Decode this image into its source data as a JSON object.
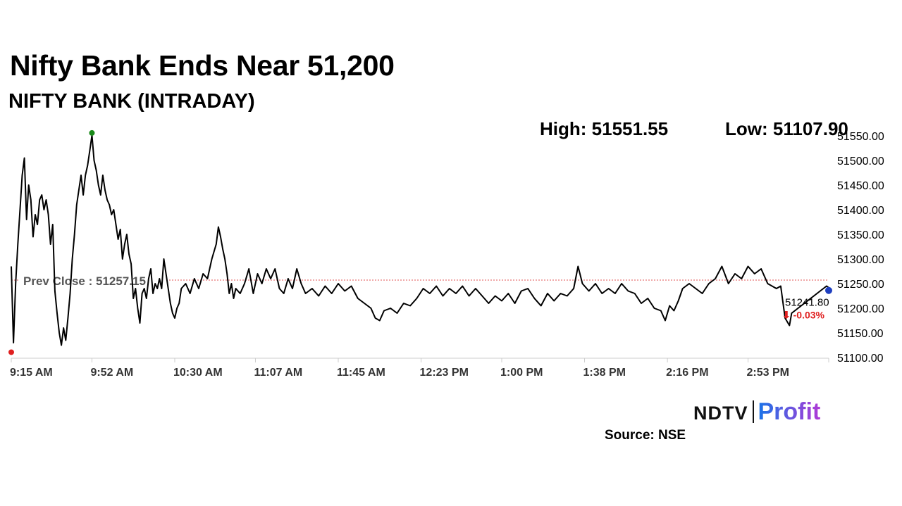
{
  "header": {
    "title": "Nifty Bank Ends Near 51,200",
    "subtitle": "NIFTY BANK (INTRADAY)",
    "high_label": "High: 51551.55",
    "low_label": "Low: 51107.90"
  },
  "footer": {
    "logo_ndtv": "NDTV",
    "logo_profit": "Profit",
    "source": "Source: NSE"
  },
  "chart_data": {
    "type": "line",
    "title": "NIFTY BANK (INTRADAY)",
    "xlabel": "",
    "ylabel": "",
    "x_ticks": [
      "9:15 AM",
      "9:52 AM",
      "10:30 AM",
      "11:07 AM",
      "11:45 AM",
      "12:23 PM",
      "1:00 PM",
      "1:38 PM",
      "2:16 PM",
      "2:53 PM"
    ],
    "y_ticks": [
      "51100.00",
      "51150.00",
      "51200.00",
      "51250.00",
      "51300.00",
      "51350.00",
      "51400.00",
      "51450.00",
      "51500.00",
      "51550.00"
    ],
    "ylim": [
      51100,
      51550
    ],
    "xlim": [
      "9:15 AM",
      "3:30 PM"
    ],
    "grid": false,
    "prev_close": 51257.15,
    "prev_close_label": "Prev Close : 51257.15",
    "high": 51551.55,
    "low": 51107.9,
    "last_value": "51241.80",
    "change_label": "⬇ -0.03%",
    "line_color": "#000000",
    "prev_close_color": "#e05050",
    "high_marker_color": "#1a8a1a",
    "low_marker_color": "#e02020",
    "last_marker_color": "#1f3fbf",
    "change_color": "#e02020",
    "points": [
      [
        "9:15 AM",
        51285
      ],
      [
        "9:16 AM",
        51130
      ],
      [
        "9:17 AM",
        51250
      ],
      [
        "9:18 AM",
        51330
      ],
      [
        "9:20 AM",
        51470
      ],
      [
        "9:21 AM",
        51505
      ],
      [
        "9:22 AM",
        51380
      ],
      [
        "9:23 AM",
        51450
      ],
      [
        "9:24 AM",
        51420
      ],
      [
        "9:25 AM",
        51345
      ],
      [
        "9:26 AM",
        51390
      ],
      [
        "9:27 AM",
        51370
      ],
      [
        "9:28 AM",
        51420
      ],
      [
        "9:29 AM",
        51430
      ],
      [
        "9:30 AM",
        51400
      ],
      [
        "9:31 AM",
        51420
      ],
      [
        "9:32 AM",
        51390
      ],
      [
        "9:33 AM",
        51330
      ],
      [
        "9:34 AM",
        51370
      ],
      [
        "9:35 AM",
        51235
      ],
      [
        "9:36 AM",
        51190
      ],
      [
        "9:37 AM",
        51150
      ],
      [
        "9:38 AM",
        51125
      ],
      [
        "9:39 AM",
        51160
      ],
      [
        "9:40 AM",
        51135
      ],
      [
        "9:41 AM",
        51180
      ],
      [
        "9:42 AM",
        51230
      ],
      [
        "9:43 AM",
        51300
      ],
      [
        "9:44 AM",
        51350
      ],
      [
        "9:45 AM",
        51410
      ],
      [
        "9:46 AM",
        51440
      ],
      [
        "9:47 AM",
        51470
      ],
      [
        "9:48 AM",
        51430
      ],
      [
        "9:49 AM",
        51470
      ],
      [
        "9:50 AM",
        51490
      ],
      [
        "9:51 AM",
        51520
      ],
      [
        "9:52 AM",
        51551
      ],
      [
        "9:53 AM",
        51500
      ],
      [
        "9:54 AM",
        51480
      ],
      [
        "9:55 AM",
        51450
      ],
      [
        "9:56 AM",
        51430
      ],
      [
        "9:57 AM",
        51470
      ],
      [
        "9:58 AM",
        51440
      ],
      [
        "9:59 AM",
        51420
      ],
      [
        "10:00 AM",
        51410
      ],
      [
        "10:01 AM",
        51390
      ],
      [
        "10:02 AM",
        51400
      ],
      [
        "10:03 AM",
        51370
      ],
      [
        "10:04 AM",
        51340
      ],
      [
        "10:05 AM",
        51360
      ],
      [
        "10:06 AM",
        51300
      ],
      [
        "10:07 AM",
        51330
      ],
      [
        "10:08 AM",
        51350
      ],
      [
        "10:09 AM",
        51310
      ],
      [
        "10:10 AM",
        51290
      ],
      [
        "10:11 AM",
        51220
      ],
      [
        "10:12 AM",
        51240
      ],
      [
        "10:13 AM",
        51200
      ],
      [
        "10:14 AM",
        51170
      ],
      [
        "10:15 AM",
        51230
      ],
      [
        "10:16 AM",
        51240
      ],
      [
        "10:17 AM",
        51220
      ],
      [
        "10:18 AM",
        51260
      ],
      [
        "10:19 AM",
        51280
      ],
      [
        "10:20 AM",
        51230
      ],
      [
        "10:21 AM",
        51250
      ],
      [
        "10:22 AM",
        51240
      ],
      [
        "10:23 AM",
        51260
      ],
      [
        "10:24 AM",
        51240
      ],
      [
        "10:25 AM",
        51300
      ],
      [
        "10:26 AM",
        51270
      ],
      [
        "10:27 AM",
        51240
      ],
      [
        "10:28 AM",
        51210
      ],
      [
        "10:29 AM",
        51190
      ],
      [
        "10:30 AM",
        51180
      ],
      [
        "10:31 AM",
        51200
      ],
      [
        "10:32 AM",
        51210
      ],
      [
        "10:33 AM",
        51240
      ],
      [
        "10:35 AM",
        51250
      ],
      [
        "10:37 AM",
        51230
      ],
      [
        "10:39 AM",
        51260
      ],
      [
        "10:41 AM",
        51240
      ],
      [
        "10:43 AM",
        51270
      ],
      [
        "10:45 AM",
        51260
      ],
      [
        "10:47 AM",
        51300
      ],
      [
        "10:49 AM",
        51330
      ],
      [
        "10:50 AM",
        51365
      ],
      [
        "10:51 AM",
        51345
      ],
      [
        "10:52 AM",
        51320
      ],
      [
        "10:53 AM",
        51300
      ],
      [
        "10:54 AM",
        51270
      ],
      [
        "10:55 AM",
        51230
      ],
      [
        "10:56 AM",
        51250
      ],
      [
        "10:57 AM",
        51220
      ],
      [
        "10:58 AM",
        51240
      ],
      [
        "11:00 AM",
        51230
      ],
      [
        "11:02 AM",
        51250
      ],
      [
        "11:04 AM",
        51280
      ],
      [
        "11:06 AM",
        51230
      ],
      [
        "11:08 AM",
        51270
      ],
      [
        "11:10 AM",
        51250
      ],
      [
        "11:12 AM",
        51280
      ],
      [
        "11:14 AM",
        51260
      ],
      [
        "11:16 AM",
        51280
      ],
      [
        "11:18 AM",
        51240
      ],
      [
        "11:20 AM",
        51230
      ],
      [
        "11:22 AM",
        51260
      ],
      [
        "11:24 AM",
        51240
      ],
      [
        "11:26 AM",
        51280
      ],
      [
        "11:28 AM",
        51250
      ],
      [
        "11:30 AM",
        51230
      ],
      [
        "11:33 AM",
        51240
      ],
      [
        "11:36 AM",
        51225
      ],
      [
        "11:39 AM",
        51245
      ],
      [
        "11:42 AM",
        51230
      ],
      [
        "11:45 AM",
        51250
      ],
      [
        "11:48 AM",
        51235
      ],
      [
        "11:51 AM",
        51245
      ],
      [
        "11:54 AM",
        51220
      ],
      [
        "11:57 AM",
        51210
      ],
      [
        "12:00 PM",
        51200
      ],
      [
        "12:02 PM",
        51180
      ],
      [
        "12:04 PM",
        51175
      ],
      [
        "12:06 PM",
        51195
      ],
      [
        "12:09 PM",
        51200
      ],
      [
        "12:12 PM",
        51190
      ],
      [
        "12:15 PM",
        51210
      ],
      [
        "12:18 PM",
        51205
      ],
      [
        "12:21 PM",
        51220
      ],
      [
        "12:24 PM",
        51240
      ],
      [
        "12:27 PM",
        51230
      ],
      [
        "12:30 PM",
        51245
      ],
      [
        "12:33 PM",
        51225
      ],
      [
        "12:36 PM",
        51240
      ],
      [
        "12:39 PM",
        51230
      ],
      [
        "12:42 PM",
        51245
      ],
      [
        "12:45 PM",
        51225
      ],
      [
        "12:48 PM",
        51240
      ],
      [
        "12:51 PM",
        51225
      ],
      [
        "12:54 PM",
        51210
      ],
      [
        "12:57 PM",
        51225
      ],
      [
        "1:00 PM",
        51215
      ],
      [
        "1:03 PM",
        51230
      ],
      [
        "1:06 PM",
        51210
      ],
      [
        "1:09 PM",
        51235
      ],
      [
        "1:12 PM",
        51240
      ],
      [
        "1:15 PM",
        51220
      ],
      [
        "1:18 PM",
        51205
      ],
      [
        "1:21 PM",
        51230
      ],
      [
        "1:24 PM",
        51215
      ],
      [
        "1:27 PM",
        51230
      ],
      [
        "1:30 PM",
        51225
      ],
      [
        "1:33 PM",
        51240
      ],
      [
        "1:35 PM",
        51285
      ],
      [
        "1:37 PM",
        51250
      ],
      [
        "1:40 PM",
        51235
      ],
      [
        "1:43 PM",
        51250
      ],
      [
        "1:46 PM",
        51230
      ],
      [
        "1:49 PM",
        51240
      ],
      [
        "1:52 PM",
        51230
      ],
      [
        "1:55 PM",
        51250
      ],
      [
        "1:58 PM",
        51235
      ],
      [
        "2:01 PM",
        51230
      ],
      [
        "2:04 PM",
        51210
      ],
      [
        "2:07 PM",
        51220
      ],
      [
        "2:10 PM",
        51200
      ],
      [
        "2:13 PM",
        51195
      ],
      [
        "2:15 PM",
        51175
      ],
      [
        "2:17 PM",
        51205
      ],
      [
        "2:19 PM",
        51195
      ],
      [
        "2:21 PM",
        51215
      ],
      [
        "2:23 PM",
        51240
      ],
      [
        "2:26 PM",
        51250
      ],
      [
        "2:29 PM",
        51240
      ],
      [
        "2:32 PM",
        51230
      ],
      [
        "2:35 PM",
        51250
      ],
      [
        "2:38 PM",
        51260
      ],
      [
        "2:41 PM",
        51285
      ],
      [
        "2:44 PM",
        51250
      ],
      [
        "2:47 PM",
        51270
      ],
      [
        "2:50 PM",
        51260
      ],
      [
        "2:53 PM",
        51285
      ],
      [
        "2:56 PM",
        51270
      ],
      [
        "2:59 PM",
        51280
      ],
      [
        "3:02 PM",
        51250
      ],
      [
        "3:04 PM",
        51245
      ],
      [
        "3:06 PM",
        51240
      ],
      [
        "3:08 PM",
        51245
      ],
      [
        "3:10 PM",
        51180
      ],
      [
        "3:12 PM",
        51165
      ],
      [
        "3:13 PM",
        51190
      ],
      [
        "3:29 PM",
        51245
      ],
      [
        "3:30 PM",
        51241.8
      ]
    ]
  }
}
